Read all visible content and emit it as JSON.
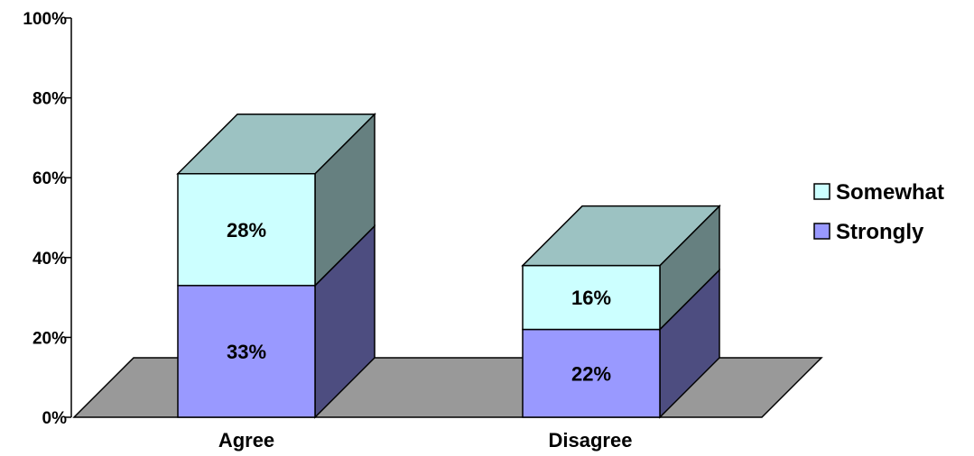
{
  "chart_data": {
    "type": "bar",
    "stacked": true,
    "three_d": true,
    "categories": [
      "Agree",
      "Disagree"
    ],
    "series": [
      {
        "name": "Strongly",
        "values": [
          33,
          22
        ],
        "labels": [
          "33%",
          "22%"
        ],
        "color": "#9999ff",
        "side_color": "#4d4d80"
      },
      {
        "name": "Somewhat",
        "values": [
          28,
          16
        ],
        "labels": [
          "28%",
          "16%"
        ],
        "color": "#ccffff",
        "side_color": "#668080"
      }
    ],
    "top_color": "#9cc2c2",
    "floor_color": "#999999",
    "y_ticks": [
      "0%",
      "20%",
      "40%",
      "60%",
      "80%",
      "100%"
    ],
    "ylim": [
      0,
      100
    ],
    "legend": {
      "position": "right",
      "order": [
        "Somewhat",
        "Strongly"
      ]
    }
  }
}
